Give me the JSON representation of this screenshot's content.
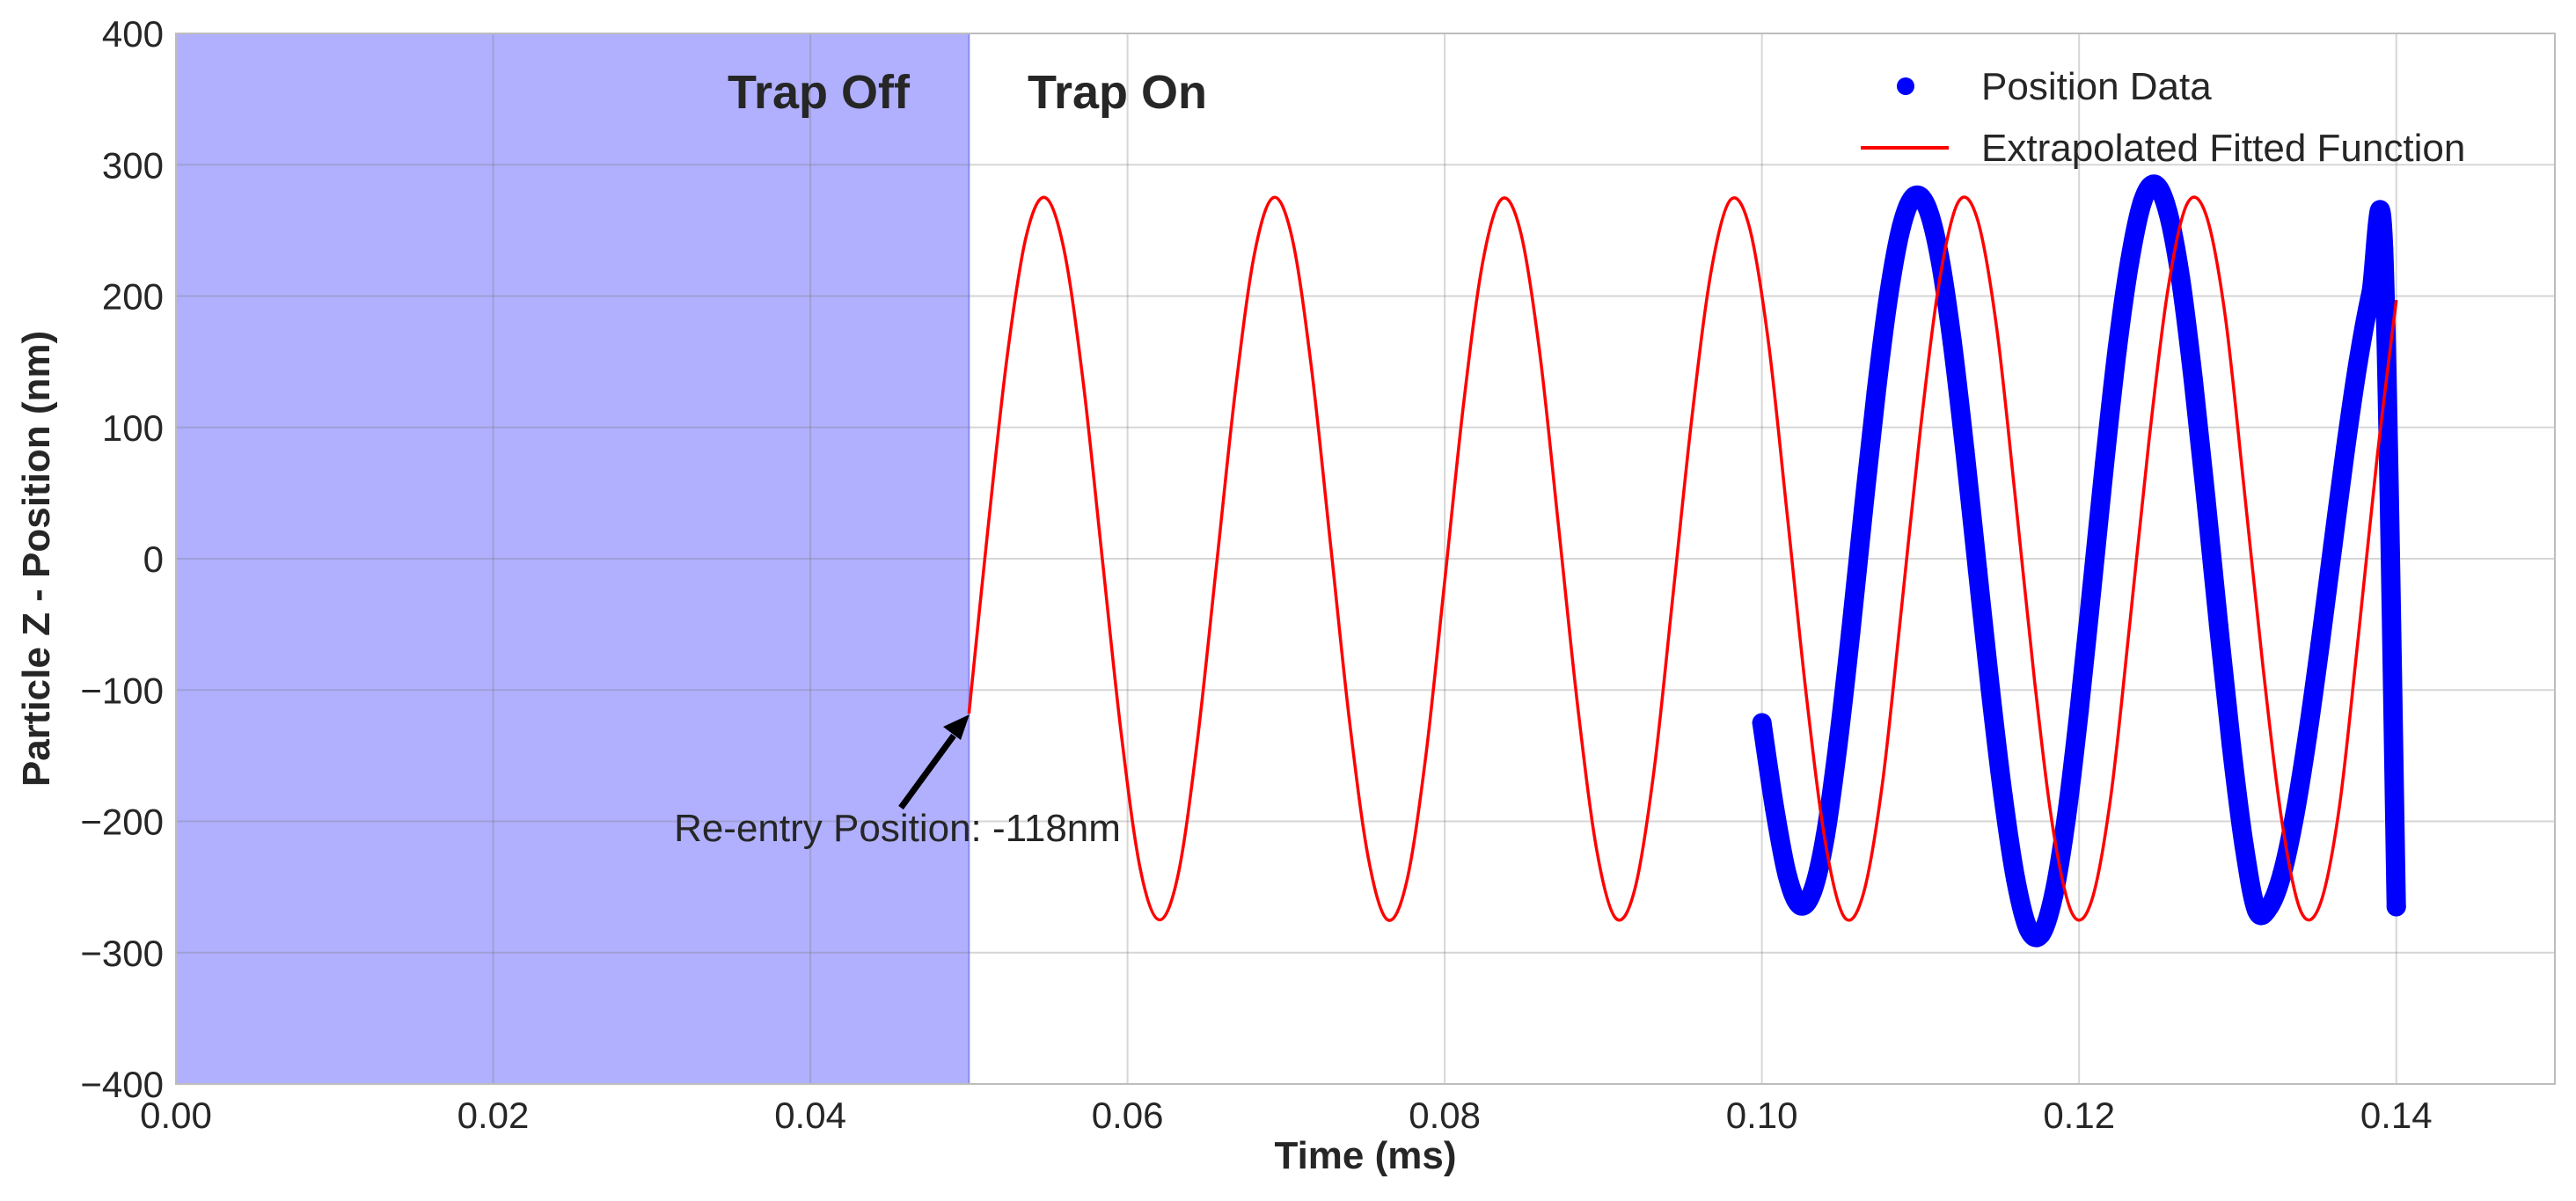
{
  "chart_data": {
    "type": "line",
    "xlabel": "Time (ms)",
    "ylabel": "Particle Z - Position (nm)",
    "xlim": [
      0.0,
      0.15
    ],
    "ylim": [
      -400,
      400
    ],
    "xticks": [
      "0.00",
      "0.02",
      "0.04",
      "0.06",
      "0.08",
      "0.10",
      "0.12",
      "0.14"
    ],
    "yticks": [
      "−400",
      "−300",
      "−200",
      "−100",
      "0",
      "100",
      "200",
      "300",
      "400"
    ],
    "grid": true,
    "legend": {
      "placement": "top-right",
      "entries": [
        {
          "label": "Position Data",
          "marker": "circle",
          "color": "#0000ff"
        },
        {
          "label": "Extrapolated Fitted Function",
          "marker": "line",
          "color": "#ff0000"
        }
      ]
    },
    "shaded_region": {
      "x": [
        0.0,
        0.05
      ],
      "color": "#b0b0ff"
    },
    "region_labels": [
      {
        "text": "Trap Off",
        "x_end": 0.05
      },
      {
        "text": "Trap On",
        "x_start": 0.05
      }
    ],
    "annotation": {
      "text": "Re-entry Position: -118nm",
      "point": [
        0.05,
        -118
      ],
      "text_at": [
        0.046,
        -205
      ]
    },
    "series": [
      {
        "name": "Extrapolated Fitted Function",
        "kind": "line",
        "color": "#ff0000",
        "x": [
          0.05,
          0.0512,
          0.0524,
          0.0536,
          0.0548,
          0.056,
          0.0572,
          0.0584,
          0.0596,
          0.0608,
          0.062,
          0.0632,
          0.0644,
          0.0656,
          0.0668,
          0.068,
          0.0692,
          0.0704,
          0.0716,
          0.0728,
          0.074,
          0.0752,
          0.0764,
          0.0776,
          0.0788,
          0.08,
          0.0812,
          0.0824,
          0.0836,
          0.0848,
          0.086,
          0.0872,
          0.0884,
          0.0896,
          0.0908,
          0.092,
          0.0932,
          0.0944,
          0.0956,
          0.0968,
          0.098,
          0.0992,
          0.1004,
          0.1016,
          0.1028,
          0.104,
          0.1052,
          0.1064,
          0.1076,
          0.1088,
          0.11,
          0.1112,
          0.1124,
          0.1136,
          0.1148,
          0.116,
          0.1172,
          0.1184,
          0.1196,
          0.1208,
          0.122,
          0.1232,
          0.1244,
          0.1256,
          0.1268,
          0.128,
          0.1292,
          0.1304,
          0.1316,
          0.1328,
          0.134,
          0.1352,
          0.1364,
          0.1376,
          0.1388,
          0.14
        ],
        "y": [
          -118,
          23,
          153,
          245,
          275,
          235,
          135,
          1,
          -133,
          -236,
          -275,
          -240,
          -139,
          -6,
          128,
          232,
          275,
          243,
          145,
          11,
          -124,
          -229,
          -275,
          -246,
          -151,
          -17,
          119,
          226,
          274,
          248,
          156,
          22,
          -114,
          -223,
          -274,
          -251,
          -161,
          -27,
          109,
          219,
          273,
          253,
          166,
          33,
          -104,
          -216,
          -273,
          -255,
          -171,
          -38,
          99,
          212,
          272,
          258,
          176,
          44,
          -94,
          -209,
          -271,
          -260,
          -181,
          -49,
          89,
          205,
          270,
          262,
          186,
          54,
          -83,
          -201,
          -269,
          -263,
          -190,
          -60,
          78,
          197
        ]
      },
      {
        "name": "Position Data",
        "kind": "scatter",
        "color": "#0000ff",
        "x": [
          0.1,
          0.1008,
          0.1016,
          0.1024,
          0.1032,
          0.104,
          0.1048,
          0.1056,
          0.1064,
          0.1072,
          0.108,
          0.1088,
          0.1096,
          0.1104,
          0.1112,
          0.112,
          0.1128,
          0.1136,
          0.1144,
          0.1152,
          0.116,
          0.1168,
          0.1176,
          0.1184,
          0.1192,
          0.12,
          0.1208,
          0.1216,
          0.1224,
          0.1232,
          0.124,
          0.1248,
          0.1256,
          0.1264,
          0.1272,
          0.128,
          0.1288,
          0.1296,
          0.1304,
          0.1312,
          0.132,
          0.1328,
          0.1336,
          0.1344,
          0.1352,
          0.136,
          0.1368,
          0.1376,
          0.1384,
          0.1392,
          0.14
        ],
        "y": [
          -125,
          -190,
          -241,
          -264,
          -253,
          -211,
          -141,
          -56,
          37,
          126,
          201,
          253,
          276,
          268,
          230,
          165,
          82,
          -9,
          -99,
          -180,
          -244,
          -282,
          -286,
          -256,
          -197,
          -116,
          -23,
          72,
          159,
          227,
          272,
          285,
          264,
          213,
          136,
          45,
          -51,
          -142,
          -218,
          -268,
          -265,
          -240,
          -195,
          -135,
          -65,
          10,
          84,
          150,
          202,
          236,
          -265
        ]
      }
    ]
  }
}
